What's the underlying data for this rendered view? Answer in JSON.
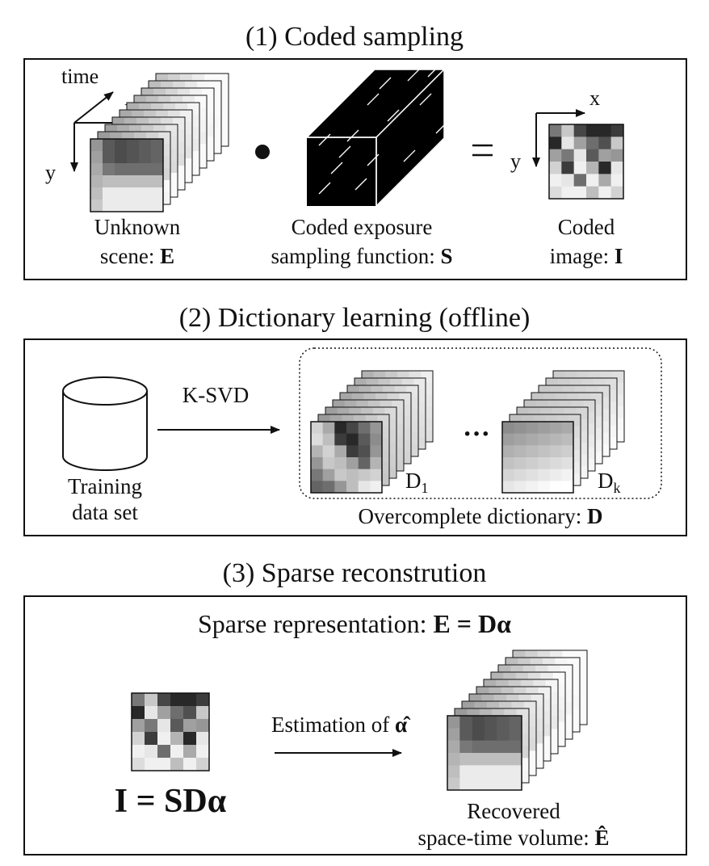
{
  "section1": {
    "title": "(1) Coded sampling",
    "axis_time": "time",
    "axis_x": "x",
    "axis_y": "y",
    "scene_label_1": "Unknown",
    "scene_label_2": "scene: ",
    "scene_symbol": "E",
    "dot_operator": "•",
    "sampling_label_1": "Coded exposure",
    "sampling_label_2": "sampling function: ",
    "sampling_symbol": "S",
    "equals_operator": "=",
    "image_axis_x": "x",
    "image_axis_y": "y",
    "image_label_1": "Coded",
    "image_label_2": "image: ",
    "image_symbol": "I"
  },
  "section2": {
    "title": "(2) Dictionary learning (offline)",
    "training_label_1": "Training",
    "training_label_2": "data set",
    "algorithm": "K-SVD",
    "ellipsis": "···",
    "atom_first": "D",
    "atom_first_sub": "1",
    "atom_last": "D",
    "atom_last_sub": "k",
    "dictionary_label": "Overcomplete dictionary: ",
    "dictionary_symbol": "D"
  },
  "section3": {
    "title": "(3) Sparse reconstrution",
    "representation_label": "Sparse representation: ",
    "representation_eq": "E = Dα",
    "measurement_eq": "I = SDα",
    "estimation_label": "Estimation of ",
    "estimation_symbol": "α̂",
    "recovered_label_1": "Recovered",
    "recovered_label_2": "space-time volume: ",
    "recovered_symbol": "Ê"
  }
}
